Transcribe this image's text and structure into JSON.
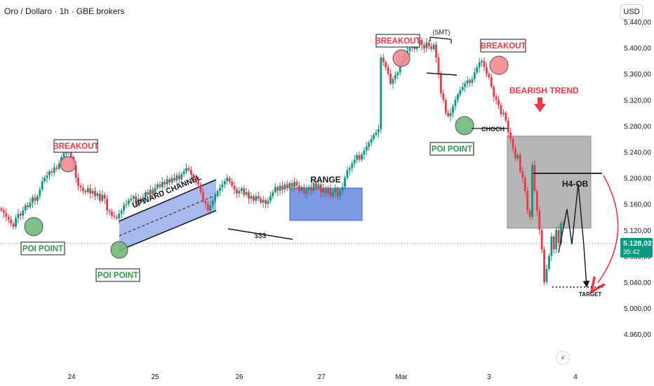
{
  "header": {
    "title": "Oro / Dollaro · 1h · GBE brokers",
    "currency": "USD"
  },
  "price_tag": {
    "price": "5.128,02",
    "countdown": "35:42"
  },
  "annotations": {
    "breakout": "BREAKOUT",
    "poi_point": "POI POINT",
    "upward_channel": "UPWARD CHANNEL",
    "range": "RANGE",
    "sss": "$$$",
    "smt": "(SMT)",
    "choch": "CHOCH",
    "bearish_trend": "BEARISH TREND",
    "h4_ob": "H4-OB",
    "target": "TARGET"
  },
  "colors": {
    "bull": "#089981",
    "bear": "#f23645",
    "breakout_circle": "#f28a8f",
    "poi_circle": "#70b87a",
    "channel_fill": "#9fb2ea",
    "range_fill": "#5b7fe0",
    "ob_fill": "#a9a9a9",
    "bearish_label": "#f23645",
    "poi_label": "#2e9b4a"
  },
  "chart_data": {
    "type": "candlestick",
    "symbol": "Oro / Dollaro",
    "timeframe": "1h",
    "y_axis_labels": [
      "5.440,00",
      "5.400,00",
      "5.360,00",
      "5.320,00",
      "5.280,00",
      "5.240,00",
      "5.200,00",
      "5.160,00",
      "5.120,00",
      "5.080,00",
      "5.040,00",
      "5.000,00",
      "4.960,00"
    ],
    "ylim": [
      4950,
      5440
    ],
    "x_axis_labels": [
      "24",
      "25",
      "26",
      "27",
      "Mar",
      "3",
      "4"
    ],
    "last_price": 5128.02,
    "series_close": [
      5150,
      5146,
      5140,
      5136,
      5130,
      5125,
      5138,
      5145,
      5142,
      5150,
      5158,
      5155,
      5162,
      5170,
      5165,
      5172,
      5182,
      5195,
      5200,
      5204,
      5210,
      5208,
      5216,
      5214,
      5222,
      5232,
      5238,
      5240,
      5248,
      5232,
      5220,
      5200,
      5188,
      5185,
      5180,
      5178,
      5184,
      5176,
      5180,
      5172,
      5176,
      5165,
      5174,
      5168,
      5150,
      5148,
      5142,
      5140,
      5138,
      5145,
      5150,
      5158,
      5160,
      5165,
      5168,
      5172,
      5162,
      5168,
      5164,
      5170,
      5178,
      5174,
      5182,
      5175,
      5185,
      5190,
      5186,
      5194,
      5190,
      5198,
      5193,
      5200,
      5196,
      5204,
      5198,
      5206,
      5210,
      5215,
      5212,
      5205,
      5200,
      5195,
      5190,
      5178,
      5165,
      5160,
      5150,
      5158,
      5165,
      5172,
      5180,
      5185,
      5190,
      5195,
      5200,
      5194,
      5188,
      5182,
      5176,
      5180,
      5184,
      5174,
      5178,
      5168,
      5172,
      5165,
      5172,
      5168,
      5162,
      5166,
      5160,
      5165,
      5172,
      5178,
      5186,
      5180,
      5188,
      5182,
      5190,
      5184,
      5192,
      5186,
      5194,
      5188,
      5180,
      5186,
      5176,
      5182,
      5186,
      5180,
      5192,
      5184,
      5190,
      5178,
      5185,
      5176,
      5183,
      5172,
      5178,
      5184,
      5172,
      5180,
      5186,
      5200,
      5212,
      5215,
      5222,
      5228,
      5235,
      5228,
      5236,
      5242,
      5248,
      5254,
      5260,
      5266,
      5270,
      5275,
      5385,
      5378,
      5370,
      5360,
      5345,
      5352,
      5358,
      5362,
      5375,
      5380,
      5390,
      5395,
      5400,
      5405,
      5398,
      5405,
      5412,
      5404,
      5399,
      5408,
      5402,
      5398,
      5405,
      5385,
      5360,
      5330,
      5320,
      5300,
      5295,
      5300,
      5310,
      5320,
      5328,
      5335,
      5340,
      5345,
      5350,
      5346,
      5352,
      5362,
      5370,
      5378,
      5380,
      5370,
      5360,
      5355,
      5340,
      5325,
      5320,
      5312,
      5298,
      5300,
      5288,
      5270,
      5260,
      5245,
      5230,
      5235,
      5210,
      5200,
      5180,
      5150,
      5140,
      5220,
      5180,
      5150,
      5120,
      5090,
      5040,
      5060,
      5080,
      5110,
      5090,
      5120,
      5100,
      5130,
      5128
    ]
  }
}
